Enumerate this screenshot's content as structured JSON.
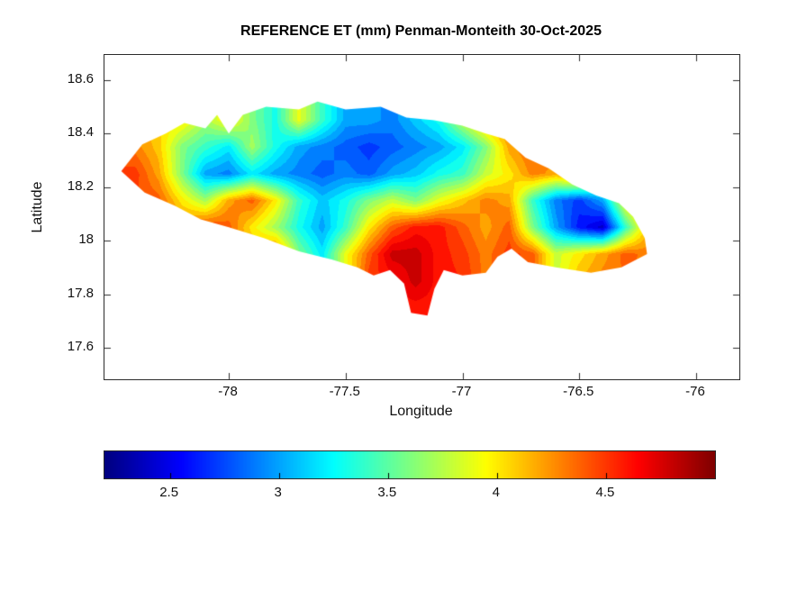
{
  "chart_data": {
    "type": "heatmap",
    "title": "REFERENCE ET (mm) Penman-Monteith 30-Oct-2025",
    "xlabel": "Longitude",
    "ylabel": "Latitude",
    "xlim": [
      -78.532,
      -75.815
    ],
    "ylim": [
      17.482,
      18.694
    ],
    "xticks": [
      -78,
      -77.5,
      -77,
      -76.5,
      -76
    ],
    "yticks": [
      17.6,
      17.8,
      18,
      18.2,
      18.4,
      18.6
    ],
    "grid_on": false,
    "colorbar": {
      "orientation": "horizontal",
      "colormap": "jet",
      "clim": [
        2.2,
        5.0
      ],
      "ticks": [
        2.5,
        3,
        3.5,
        4,
        4.5
      ],
      "units": "mm"
    },
    "region": "Jamaica",
    "grid": {
      "lon": [
        -78.4,
        -78.3,
        -78.2,
        -78.1,
        -78.0,
        -77.9,
        -77.8,
        -77.7,
        -77.6,
        -77.5,
        -77.4,
        -77.3,
        -77.2,
        -77.1,
        -77.0,
        -76.9,
        -76.8,
        -76.7,
        -76.6,
        -76.5,
        -76.4,
        -76.3,
        -76.2
      ],
      "lat": [
        18.55,
        18.45,
        18.35,
        18.25,
        18.15,
        18.05,
        17.95,
        17.85,
        17.75,
        17.65
      ],
      "et_mm": [
        [
          null,
          null,
          null,
          null,
          null,
          null,
          null,
          null,
          null,
          null,
          null,
          null,
          null,
          null,
          null,
          null,
          null,
          null,
          null,
          null,
          null,
          null,
          null
        ],
        [
          null,
          null,
          4.0,
          3.7,
          4.0,
          3.6,
          3.3,
          3.9,
          3.4,
          3.0,
          3.0,
          2.9,
          3.1,
          3.3,
          3.8,
          4.2,
          4.4,
          null,
          null,
          null,
          null,
          null,
          null
        ],
        [
          null,
          4.1,
          3.6,
          3.4,
          3.2,
          3.7,
          3.3,
          3.0,
          2.9,
          2.8,
          2.7,
          2.8,
          2.9,
          3.0,
          3.2,
          3.6,
          4.2,
          4.4,
          null,
          null,
          null,
          null,
          null
        ],
        [
          4.5,
          4.2,
          3.6,
          3.0,
          2.9,
          3.2,
          3.0,
          2.9,
          2.8,
          2.9,
          2.8,
          3.0,
          3.1,
          3.3,
          3.4,
          3.8,
          4.0,
          4.3,
          4.2,
          4.4,
          null,
          null,
          null
        ],
        [
          null,
          4.4,
          4.0,
          3.7,
          4.2,
          4.4,
          4.0,
          3.4,
          3.1,
          3.3,
          3.6,
          3.8,
          3.6,
          3.9,
          4.1,
          4.3,
          4.2,
          3.4,
          2.9,
          2.7,
          3.0,
          4.0,
          4.3
        ],
        [
          null,
          null,
          4.3,
          4.5,
          4.4,
          4.0,
          3.7,
          3.3,
          3.0,
          3.4,
          4.0,
          4.4,
          4.6,
          4.6,
          4.4,
          4.2,
          4.4,
          3.6,
          3.0,
          2.6,
          2.4,
          3.4,
          4.2
        ],
        [
          null,
          null,
          null,
          null,
          4.2,
          4.2,
          4.4,
          3.6,
          3.2,
          3.9,
          4.4,
          4.8,
          4.8,
          4.6,
          4.5,
          4.3,
          4.5,
          4.4,
          3.8,
          4.0,
          4.2,
          4.4,
          4.3
        ],
        [
          null,
          null,
          null,
          null,
          null,
          null,
          null,
          null,
          null,
          null,
          null,
          4.6,
          4.8,
          4.6,
          null,
          null,
          null,
          null,
          null,
          null,
          4.3,
          null,
          null
        ],
        [
          null,
          null,
          null,
          null,
          null,
          null,
          null,
          null,
          null,
          null,
          null,
          null,
          4.6,
          null,
          null,
          null,
          null,
          null,
          null,
          null,
          null,
          null,
          null
        ],
        [
          null,
          null,
          null,
          null,
          null,
          null,
          null,
          null,
          null,
          null,
          null,
          null,
          null,
          null,
          null,
          null,
          null,
          null,
          null,
          null,
          null,
          null,
          null
        ]
      ]
    },
    "outline_lonlat": [
      [
        -78.46,
        18.26
      ],
      [
        -78.37,
        18.36
      ],
      [
        -78.27,
        18.4
      ],
      [
        -78.19,
        18.44
      ],
      [
        -78.1,
        18.42
      ],
      [
        -78.05,
        18.47
      ],
      [
        -78.0,
        18.4
      ],
      [
        -77.94,
        18.47
      ],
      [
        -77.84,
        18.5
      ],
      [
        -77.7,
        18.49
      ],
      [
        -77.62,
        18.52
      ],
      [
        -77.5,
        18.49
      ],
      [
        -77.35,
        18.5
      ],
      [
        -77.24,
        18.46
      ],
      [
        -77.12,
        18.45
      ],
      [
        -77.0,
        18.43
      ],
      [
        -76.9,
        18.4
      ],
      [
        -76.82,
        18.38
      ],
      [
        -76.73,
        18.31
      ],
      [
        -76.63,
        18.27
      ],
      [
        -76.53,
        18.21
      ],
      [
        -76.43,
        18.17
      ],
      [
        -76.33,
        18.14
      ],
      [
        -76.27,
        18.09
      ],
      [
        -76.22,
        18.01
      ],
      [
        -76.21,
        17.95
      ],
      [
        -76.32,
        17.9
      ],
      [
        -76.45,
        17.88
      ],
      [
        -76.6,
        17.9
      ],
      [
        -76.72,
        17.92
      ],
      [
        -76.79,
        17.97
      ],
      [
        -76.85,
        17.94
      ],
      [
        -76.9,
        17.88
      ],
      [
        -77.0,
        17.87
      ],
      [
        -77.08,
        17.89
      ],
      [
        -77.12,
        17.82
      ],
      [
        -77.15,
        17.72
      ],
      [
        -77.22,
        17.73
      ],
      [
        -77.25,
        17.84
      ],
      [
        -77.31,
        17.89
      ],
      [
        -77.38,
        17.87
      ],
      [
        -77.45,
        17.9
      ],
      [
        -77.56,
        17.93
      ],
      [
        -77.7,
        17.96
      ],
      [
        -77.85,
        18.01
      ],
      [
        -78.0,
        18.05
      ],
      [
        -78.12,
        18.08
      ],
      [
        -78.23,
        18.13
      ],
      [
        -78.36,
        18.18
      ]
    ]
  }
}
